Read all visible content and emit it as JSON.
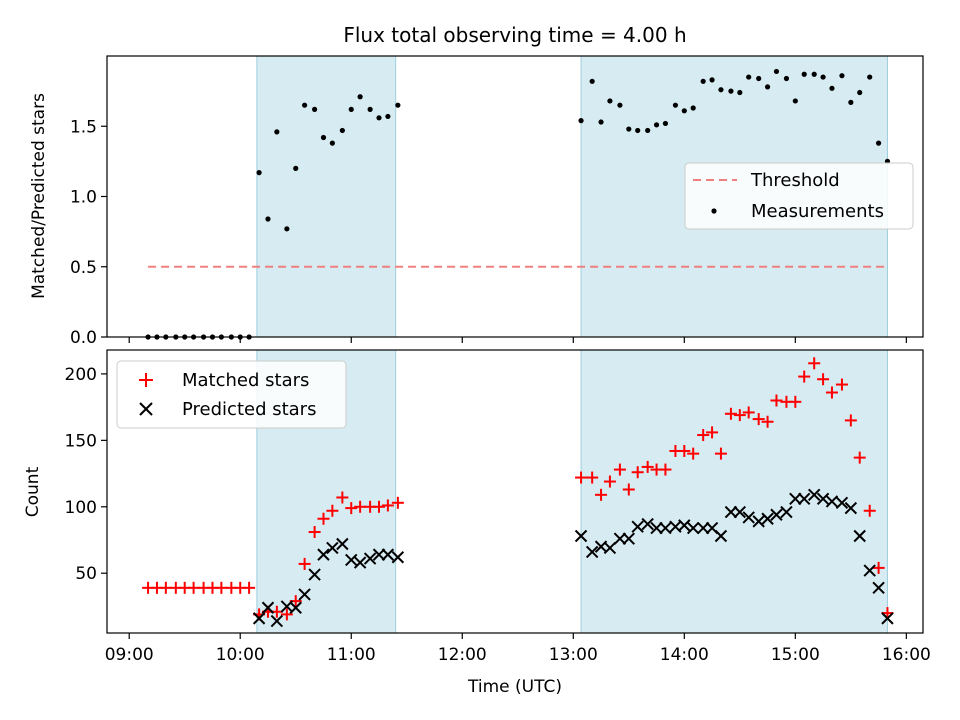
{
  "chart_data": [
    {
      "type": "scatter",
      "title": "Flux total observing time = 4.00 h",
      "xlabel": "",
      "ylabel": "Matched/Predicted stars",
      "xlim": [
        8.8,
        16.15
      ],
      "ylim": [
        0,
        2.0
      ],
      "yticks": [
        0.0,
        0.5,
        1.0,
        1.5
      ],
      "ytick_labels": [
        "0.0",
        "0.5",
        "1.0",
        "1.5"
      ],
      "shaded_intervals": [
        [
          10.15,
          11.4
        ],
        [
          13.07,
          15.83
        ]
      ],
      "legend": {
        "placement": "center-right",
        "entries": [
          "Threshold",
          "Measurements"
        ]
      },
      "threshold": {
        "name": "Threshold",
        "value": 0.5,
        "x_range": [
          9.17,
          15.83
        ],
        "color": "#f08080"
      },
      "measurements": {
        "name": "Measurements",
        "x": [
          9.17,
          9.25,
          9.33,
          9.42,
          9.5,
          9.58,
          9.67,
          9.75,
          9.83,
          9.92,
          10.0,
          10.08,
          10.17,
          10.25,
          10.33,
          10.42,
          10.5,
          10.58,
          10.67,
          10.75,
          10.83,
          10.92,
          11.0,
          11.08,
          11.17,
          11.25,
          11.33,
          11.42,
          13.07,
          13.17,
          13.25,
          13.33,
          13.42,
          13.5,
          13.58,
          13.67,
          13.75,
          13.83,
          13.92,
          14.0,
          14.08,
          14.17,
          14.25,
          14.33,
          14.42,
          14.5,
          14.58,
          14.67,
          14.75,
          14.83,
          14.92,
          15.0,
          15.08,
          15.17,
          15.25,
          15.33,
          15.42,
          15.5,
          15.58,
          15.67,
          15.75,
          15.83
        ],
        "y": [
          0,
          0,
          0,
          0,
          0,
          0,
          0,
          0,
          0,
          0,
          0,
          0,
          1.17,
          0.84,
          1.46,
          0.77,
          1.2,
          1.65,
          1.62,
          1.42,
          1.38,
          1.47,
          1.62,
          1.71,
          1.62,
          1.56,
          1.57,
          1.65,
          1.54,
          1.82,
          1.53,
          1.68,
          1.65,
          1.48,
          1.47,
          1.47,
          1.51,
          1.52,
          1.65,
          1.61,
          1.63,
          1.82,
          1.83,
          1.76,
          1.75,
          1.74,
          1.85,
          1.84,
          1.78,
          1.89,
          1.84,
          1.68,
          1.87,
          1.87,
          1.85,
          1.77,
          1.86,
          1.67,
          1.74,
          1.85,
          1.38,
          1.25
        ]
      }
    },
    {
      "type": "scatter",
      "title": "",
      "xlabel": "Time (UTC)",
      "ylabel": "Count",
      "xlim": [
        8.8,
        16.15
      ],
      "ylim": [
        5,
        218
      ],
      "yticks": [
        50,
        100,
        150,
        200
      ],
      "ytick_labels": [
        "50",
        "100",
        "150",
        "200"
      ],
      "xticks": [
        9,
        10,
        11,
        12,
        13,
        14,
        15,
        16
      ],
      "xtick_labels": [
        "09:00",
        "10:00",
        "11:00",
        "12:00",
        "13:00",
        "14:00",
        "15:00",
        "16:00"
      ],
      "shaded_intervals": [
        [
          10.15,
          11.4
        ],
        [
          13.07,
          15.83
        ]
      ],
      "legend": {
        "placement": "top-left",
        "entries": [
          "Matched stars",
          "Predicted stars"
        ]
      },
      "series": [
        {
          "name": "Matched stars",
          "marker": "+",
          "color": "#ff0000",
          "x": [
            9.17,
            9.25,
            9.33,
            9.42,
            9.5,
            9.58,
            9.67,
            9.75,
            9.83,
            9.92,
            10.0,
            10.08,
            10.17,
            10.25,
            10.33,
            10.42,
            10.5,
            10.58,
            10.67,
            10.75,
            10.83,
            10.92,
            11.0,
            11.08,
            11.17,
            11.25,
            11.33,
            11.42,
            13.07,
            13.17,
            13.25,
            13.33,
            13.42,
            13.5,
            13.58,
            13.67,
            13.75,
            13.83,
            13.92,
            14.0,
            14.08,
            14.17,
            14.25,
            14.33,
            14.42,
            14.5,
            14.58,
            14.67,
            14.75,
            14.83,
            14.92,
            15.0,
            15.08,
            15.17,
            15.25,
            15.33,
            15.42,
            15.5,
            15.58,
            15.67,
            15.75,
            15.83
          ],
          "y": [
            39,
            39,
            39,
            39,
            39,
            39,
            39,
            39,
            39,
            39,
            39,
            39,
            19,
            21,
            21,
            19,
            29,
            57,
            81,
            91,
            97,
            107,
            99,
            100,
            100,
            100,
            101,
            103,
            122,
            122,
            109,
            119,
            128,
            113,
            126,
            130,
            128,
            128,
            142,
            142,
            140,
            154,
            156,
            140,
            170,
            169,
            171,
            166,
            164,
            180,
            179,
            179,
            198,
            208,
            196,
            186,
            192,
            165,
            137,
            97,
            54,
            20
          ]
        },
        {
          "name": "Predicted stars",
          "marker": "x",
          "color": "#000000",
          "x": [
            10.17,
            10.25,
            10.33,
            10.42,
            10.5,
            10.58,
            10.67,
            10.75,
            10.83,
            10.92,
            11.0,
            11.08,
            11.17,
            11.25,
            11.33,
            11.42,
            13.07,
            13.17,
            13.25,
            13.33,
            13.42,
            13.5,
            13.58,
            13.67,
            13.75,
            13.83,
            13.92,
            14.0,
            14.08,
            14.17,
            14.25,
            14.33,
            14.42,
            14.5,
            14.58,
            14.67,
            14.75,
            14.83,
            14.92,
            15.0,
            15.08,
            15.17,
            15.25,
            15.33,
            15.42,
            15.5,
            15.58,
            15.67,
            15.75,
            15.83
          ],
          "y": [
            16,
            24,
            14,
            25,
            24,
            34,
            49,
            64,
            69,
            72,
            60,
            58,
            61,
            64,
            64,
            62,
            78,
            66,
            70,
            69,
            76,
            76,
            85,
            87,
            84,
            84,
            85,
            86,
            84,
            84,
            84,
            78,
            96,
            96,
            92,
            89,
            91,
            94,
            96,
            106,
            106,
            109,
            106,
            104,
            103,
            99,
            78,
            52,
            39,
            16
          ]
        }
      ]
    }
  ]
}
